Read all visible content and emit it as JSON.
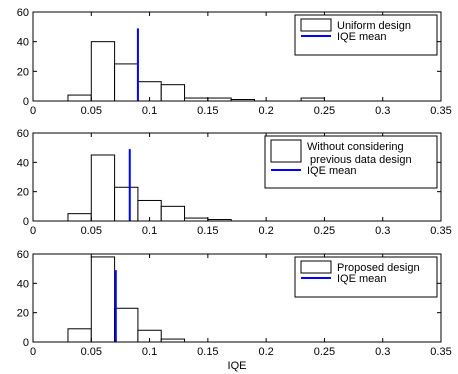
{
  "chart_data": [
    {
      "type": "bar",
      "xlim": [
        0,
        0.35
      ],
      "ylim": [
        0,
        60
      ],
      "xticks": [
        "0",
        "0.05",
        "0.1",
        "0.15",
        "0.2",
        "0.25",
        "0.3",
        "0.35"
      ],
      "yticks": [
        "0",
        "20",
        "40",
        "60"
      ],
      "bin_width": 0.02,
      "bins": [
        0.04,
        0.06,
        0.08,
        0.1,
        0.12,
        0.14,
        0.16,
        0.18,
        0.2,
        0.22,
        0.24,
        0.26
      ],
      "values": [
        4,
        40,
        25,
        13,
        11,
        2,
        2,
        1,
        0,
        0,
        2,
        0
      ],
      "mean": 0.09,
      "mean_height": 49,
      "mean_color": "#0000ff",
      "legend": [
        "Uniform design",
        "IQE mean"
      ],
      "legend_position": "top-right",
      "xlabel": ""
    },
    {
      "type": "bar",
      "xlim": [
        0,
        0.35
      ],
      "ylim": [
        0,
        60
      ],
      "xticks": [
        "0",
        "0.05",
        "0.1",
        "0.15",
        "0.2",
        "0.25",
        "0.3",
        "0.35"
      ],
      "yticks": [
        "0",
        "20",
        "40",
        "60"
      ],
      "bin_width": 0.02,
      "bins": [
        0.04,
        0.06,
        0.08,
        0.1,
        0.12,
        0.14,
        0.16,
        0.18,
        0.2,
        0.22,
        0.24,
        0.26
      ],
      "values": [
        5,
        45,
        23,
        14,
        10,
        2,
        1,
        0,
        0,
        0,
        0,
        0
      ],
      "mean": 0.083,
      "mean_height": 49,
      "mean_color": "#0000ff",
      "legend": [
        "Without considering\n previous data design",
        "IQE mean"
      ],
      "legend_position": "top-right",
      "xlabel": ""
    },
    {
      "type": "bar",
      "xlim": [
        0,
        0.35
      ],
      "ylim": [
        0,
        60
      ],
      "xticks": [
        "0",
        "0.05",
        "0.1",
        "0.15",
        "0.2",
        "0.25",
        "0.3",
        "0.35"
      ],
      "yticks": [
        "0",
        "20",
        "40",
        "60"
      ],
      "bin_width": 0.02,
      "bins": [
        0.04,
        0.06,
        0.08,
        0.1,
        0.12,
        0.14
      ],
      "values": [
        9,
        58,
        23,
        8,
        2,
        0
      ],
      "mean": 0.071,
      "mean_height": 49,
      "mean_color": "#0000ff",
      "legend": [
        "Proposed design",
        "IQE mean"
      ],
      "legend_position": "top-right",
      "xlabel": "IQE"
    }
  ]
}
